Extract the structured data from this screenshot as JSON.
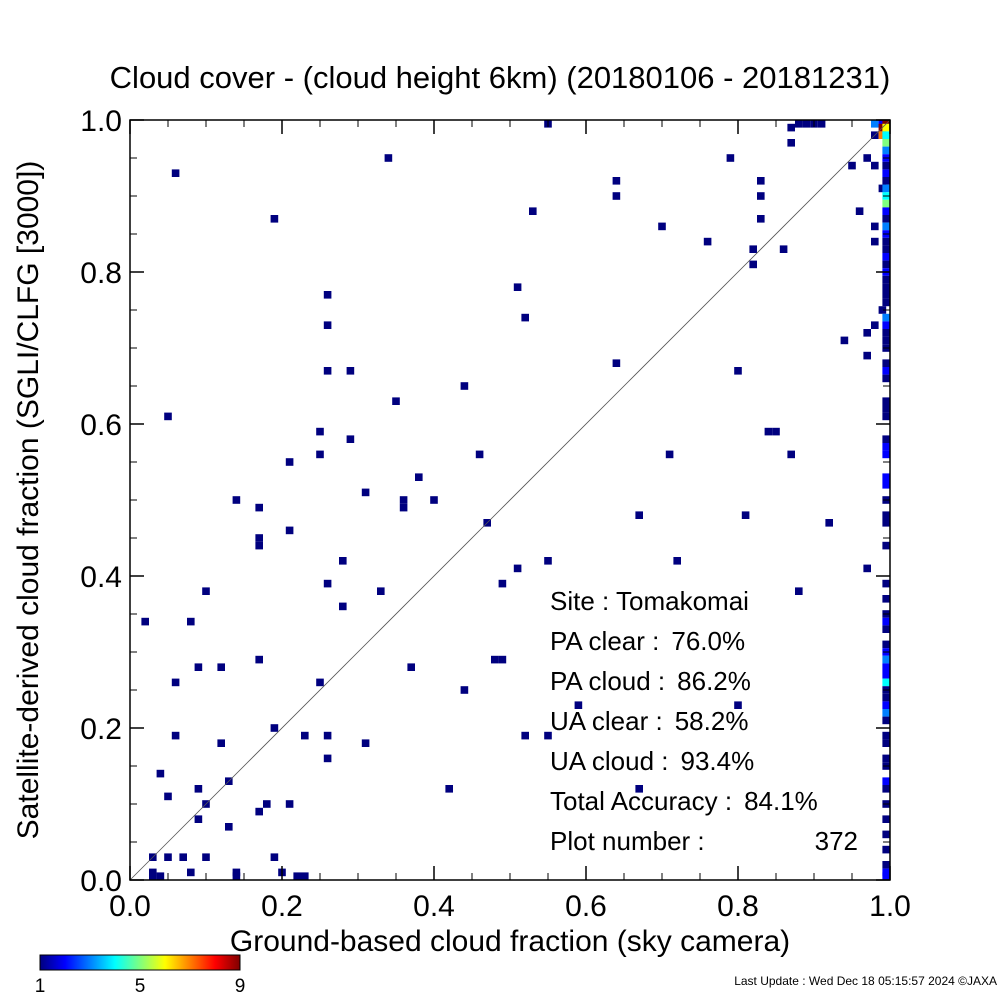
{
  "chart_data": {
    "type": "heatmap",
    "title": "Cloud cover - (cloud height 6km)  (20180106 - 20181231)",
    "xlabel": "Ground-based cloud fraction (sky camera)",
    "ylabel": "Satellite-derived cloud fraction (SGLI/CLFG [3000])",
    "xlim": [
      0,
      1
    ],
    "ylim": [
      0,
      1
    ],
    "x_ticks": [
      "0.0",
      "0.2",
      "0.4",
      "0.6",
      "0.8",
      "1.0"
    ],
    "y_ticks": [
      "0.0",
      "0.2",
      "0.4",
      "0.6",
      "0.8",
      "1.0"
    ],
    "diagonal_line": true,
    "grid": false,
    "bin_size": 0.01,
    "colorbar": {
      "min": 1,
      "max": 9,
      "ticks": [
        "1",
        "5",
        "9"
      ]
    },
    "stats": [
      {
        "label": "Site : Tomakomai",
        "value": ""
      },
      {
        "label": "PA clear :",
        "value": "76.0%"
      },
      {
        "label": "PA cloud :",
        "value": "86.2%"
      },
      {
        "label": "UA clear :",
        "value": "58.2%"
      },
      {
        "label": "UA cloud :",
        "value": "93.4%"
      },
      {
        "label": "Total Accuracy :",
        "value": "84.1%"
      },
      {
        "label": "Plot number :",
        "value": "372"
      }
    ],
    "points": [
      [
        0.02,
        0.34,
        1
      ],
      [
        0.03,
        0.0,
        1
      ],
      [
        0.03,
        0.01,
        1
      ],
      [
        0.03,
        0.03,
        1
      ],
      [
        0.04,
        0.0,
        1
      ],
      [
        0.04,
        0.14,
        1
      ],
      [
        0.05,
        0.11,
        1
      ],
      [
        0.05,
        0.03,
        1
      ],
      [
        0.05,
        0.61,
        1
      ],
      [
        0.06,
        0.19,
        1
      ],
      [
        0.06,
        0.26,
        1
      ],
      [
        0.06,
        0.93,
        1
      ],
      [
        0.07,
        0.03,
        1
      ],
      [
        0.08,
        0.34,
        1
      ],
      [
        0.08,
        0.01,
        1
      ],
      [
        0.09,
        0.12,
        1
      ],
      [
        0.09,
        0.08,
        1
      ],
      [
        0.09,
        0.28,
        1
      ],
      [
        0.1,
        0.38,
        1
      ],
      [
        0.1,
        0.1,
        1
      ],
      [
        0.1,
        0.03,
        1
      ],
      [
        0.12,
        0.28,
        1
      ],
      [
        0.12,
        0.18,
        1
      ],
      [
        0.13,
        0.07,
        1
      ],
      [
        0.13,
        0.13,
        1
      ],
      [
        0.14,
        0.0,
        1
      ],
      [
        0.14,
        0.01,
        1
      ],
      [
        0.14,
        0.5,
        1
      ],
      [
        0.17,
        0.45,
        1
      ],
      [
        0.17,
        0.44,
        1
      ],
      [
        0.17,
        0.49,
        1
      ],
      [
        0.17,
        0.09,
        1
      ],
      [
        0.17,
        0.29,
        1
      ],
      [
        0.18,
        0.1,
        1
      ],
      [
        0.19,
        0.87,
        1
      ],
      [
        0.19,
        0.2,
        1
      ],
      [
        0.19,
        0.03,
        1
      ],
      [
        0.2,
        0.01,
        1
      ],
      [
        0.21,
        0.1,
        1
      ],
      [
        0.21,
        0.46,
        1
      ],
      [
        0.21,
        0.55,
        1
      ],
      [
        0.22,
        0.0,
        1
      ],
      [
        0.23,
        0.0,
        1
      ],
      [
        0.23,
        0.19,
        1
      ],
      [
        0.25,
        0.26,
        1
      ],
      [
        0.25,
        0.56,
        1
      ],
      [
        0.25,
        0.59,
        1
      ],
      [
        0.26,
        0.77,
        1
      ],
      [
        0.26,
        0.73,
        1
      ],
      [
        0.26,
        0.67,
        1
      ],
      [
        0.26,
        0.39,
        1
      ],
      [
        0.26,
        0.19,
        1
      ],
      [
        0.26,
        0.16,
        1
      ],
      [
        0.28,
        0.42,
        1
      ],
      [
        0.28,
        0.36,
        1
      ],
      [
        0.29,
        0.67,
        1
      ],
      [
        0.29,
        0.58,
        1
      ],
      [
        0.31,
        0.51,
        1
      ],
      [
        0.31,
        0.18,
        1
      ],
      [
        0.33,
        0.38,
        1
      ],
      [
        0.34,
        0.95,
        1
      ],
      [
        0.35,
        0.63,
        1
      ],
      [
        0.36,
        0.5,
        1
      ],
      [
        0.36,
        0.49,
        1
      ],
      [
        0.37,
        0.28,
        1
      ],
      [
        0.38,
        0.53,
        1
      ],
      [
        0.4,
        0.5,
        1
      ],
      [
        0.42,
        0.12,
        1
      ],
      [
        0.44,
        0.65,
        1
      ],
      [
        0.44,
        0.25,
        1
      ],
      [
        0.46,
        0.56,
        1
      ],
      [
        0.47,
        0.47,
        1
      ],
      [
        0.48,
        0.29,
        1
      ],
      [
        0.49,
        0.29,
        1
      ],
      [
        0.49,
        0.39,
        1
      ],
      [
        0.51,
        0.78,
        1
      ],
      [
        0.51,
        0.41,
        1
      ],
      [
        0.52,
        0.74,
        1
      ],
      [
        0.52,
        0.19,
        1
      ],
      [
        0.53,
        0.88,
        1
      ],
      [
        0.55,
        0.42,
        1
      ],
      [
        0.55,
        0.19,
        1
      ],
      [
        0.55,
        1.0,
        1
      ],
      [
        0.59,
        0.23,
        1
      ],
      [
        0.64,
        0.92,
        1
      ],
      [
        0.64,
        0.9,
        1
      ],
      [
        0.64,
        0.68,
        1
      ],
      [
        0.67,
        0.48,
        1
      ],
      [
        0.67,
        0.12,
        1
      ],
      [
        0.7,
        0.86,
        1
      ],
      [
        0.71,
        0.56,
        1
      ],
      [
        0.72,
        0.42,
        1
      ],
      [
        0.76,
        0.84,
        1
      ],
      [
        0.79,
        0.95,
        1
      ],
      [
        0.8,
        0.67,
        1
      ],
      [
        0.8,
        0.23,
        1
      ],
      [
        0.81,
        0.48,
        1
      ],
      [
        0.82,
        0.83,
        1
      ],
      [
        0.82,
        0.81,
        1
      ],
      [
        0.83,
        0.92,
        1
      ],
      [
        0.83,
        0.9,
        1
      ],
      [
        0.83,
        0.87,
        1
      ],
      [
        0.84,
        0.59,
        1
      ],
      [
        0.85,
        0.59,
        1
      ],
      [
        0.86,
        0.83,
        1
      ],
      [
        0.87,
        0.56,
        1
      ],
      [
        0.87,
        0.97,
        1
      ],
      [
        0.87,
        0.99,
        1
      ],
      [
        0.88,
        0.38,
        1
      ],
      [
        0.88,
        1.0,
        1
      ],
      [
        0.89,
        1.0,
        1
      ],
      [
        0.9,
        1.0,
        1
      ],
      [
        0.91,
        1.0,
        1
      ],
      [
        0.92,
        0.47,
        1
      ],
      [
        0.94,
        0.71,
        1
      ],
      [
        0.95,
        0.94,
        1
      ],
      [
        0.96,
        0.88,
        1
      ],
      [
        0.97,
        0.95,
        1
      ],
      [
        0.97,
        0.72,
        1
      ],
      [
        0.97,
        0.69,
        1
      ],
      [
        0.97,
        0.41,
        1
      ],
      [
        0.98,
        0.73,
        1
      ],
      [
        0.98,
        0.84,
        1
      ],
      [
        0.98,
        0.94,
        1
      ],
      [
        0.98,
        0.98,
        1
      ],
      [
        0.98,
        0.86,
        1
      ],
      [
        0.98,
        1.0,
        3
      ],
      [
        0.99,
        1.0,
        2
      ],
      [
        0.99,
        0.99,
        9
      ],
      [
        0.99,
        0.98,
        7
      ],
      [
        0.99,
        0.91,
        1
      ],
      [
        0.99,
        0.75,
        1
      ],
      [
        1.0,
        1.0,
        9
      ],
      [
        1.0,
        0.99,
        6
      ],
      [
        1.0,
        0.98,
        4
      ],
      [
        1.0,
        0.97,
        5
      ],
      [
        1.0,
        0.96,
        3
      ],
      [
        1.0,
        0.95,
        2
      ],
      [
        1.0,
        0.94,
        1
      ],
      [
        1.0,
        0.93,
        2
      ],
      [
        1.0,
        0.92,
        1
      ],
      [
        1.0,
        0.91,
        3
      ],
      [
        1.0,
        0.9,
        4
      ],
      [
        1.0,
        0.89,
        5
      ],
      [
        1.0,
        0.88,
        2
      ],
      [
        1.0,
        0.87,
        1
      ],
      [
        1.0,
        0.86,
        3
      ],
      [
        1.0,
        0.85,
        2
      ],
      [
        1.0,
        0.84,
        1
      ],
      [
        1.0,
        0.83,
        1
      ],
      [
        1.0,
        0.82,
        2
      ],
      [
        1.0,
        0.81,
        1
      ],
      [
        1.0,
        0.8,
        2
      ],
      [
        1.0,
        0.79,
        1
      ],
      [
        1.0,
        0.78,
        1
      ],
      [
        1.0,
        0.77,
        1
      ],
      [
        1.0,
        0.76,
        1
      ],
      [
        1.0,
        0.74,
        3
      ],
      [
        1.0,
        0.73,
        2
      ],
      [
        1.0,
        0.72,
        1
      ],
      [
        1.0,
        0.71,
        1
      ],
      [
        1.0,
        0.7,
        1
      ],
      [
        1.0,
        0.68,
        1
      ],
      [
        1.0,
        0.67,
        2
      ],
      [
        1.0,
        0.66,
        1
      ],
      [
        1.0,
        0.63,
        1
      ],
      [
        1.0,
        0.62,
        1
      ],
      [
        1.0,
        0.61,
        1
      ],
      [
        1.0,
        0.58,
        1
      ],
      [
        1.0,
        0.57,
        2
      ],
      [
        1.0,
        0.56,
        2
      ],
      [
        1.0,
        0.53,
        2
      ],
      [
        1.0,
        0.52,
        2
      ],
      [
        1.0,
        0.5,
        1
      ],
      [
        1.0,
        0.48,
        1
      ],
      [
        1.0,
        0.47,
        1
      ],
      [
        1.0,
        0.44,
        1
      ],
      [
        1.0,
        0.39,
        1
      ],
      [
        1.0,
        0.37,
        1
      ],
      [
        1.0,
        0.35,
        1
      ],
      [
        1.0,
        0.34,
        2
      ],
      [
        1.0,
        0.33,
        1
      ],
      [
        1.0,
        0.31,
        1
      ],
      [
        1.0,
        0.3,
        2
      ],
      [
        1.0,
        0.29,
        3
      ],
      [
        1.0,
        0.28,
        2
      ],
      [
        1.0,
        0.27,
        2
      ],
      [
        1.0,
        0.26,
        4
      ],
      [
        1.0,
        0.25,
        1
      ],
      [
        1.0,
        0.24,
        1
      ],
      [
        1.0,
        0.23,
        2
      ],
      [
        1.0,
        0.22,
        3
      ],
      [
        1.0,
        0.21,
        1
      ],
      [
        1.0,
        0.19,
        1
      ],
      [
        1.0,
        0.18,
        1
      ],
      [
        1.0,
        0.16,
        1
      ],
      [
        1.0,
        0.15,
        1
      ],
      [
        1.0,
        0.13,
        2
      ],
      [
        1.0,
        0.12,
        1
      ],
      [
        1.0,
        0.1,
        1
      ],
      [
        1.0,
        0.08,
        1
      ],
      [
        1.0,
        0.06,
        1
      ],
      [
        1.0,
        0.04,
        1
      ],
      [
        1.0,
        0.02,
        1
      ],
      [
        1.0,
        0.01,
        2
      ],
      [
        1.0,
        0.0,
        2
      ]
    ]
  },
  "footer": {
    "last_update": "Last Update : Wed Dec 18 05:15:57 2024  ©JAXA"
  },
  "colors": {
    "diagonal": "#555555",
    "axis": "#000000",
    "colormap": [
      "#00007f",
      "#0000ff",
      "#007fff",
      "#00ffff",
      "#7fff7f",
      "#ffff00",
      "#ff7f00",
      "#ff0000",
      "#7f0000"
    ]
  }
}
